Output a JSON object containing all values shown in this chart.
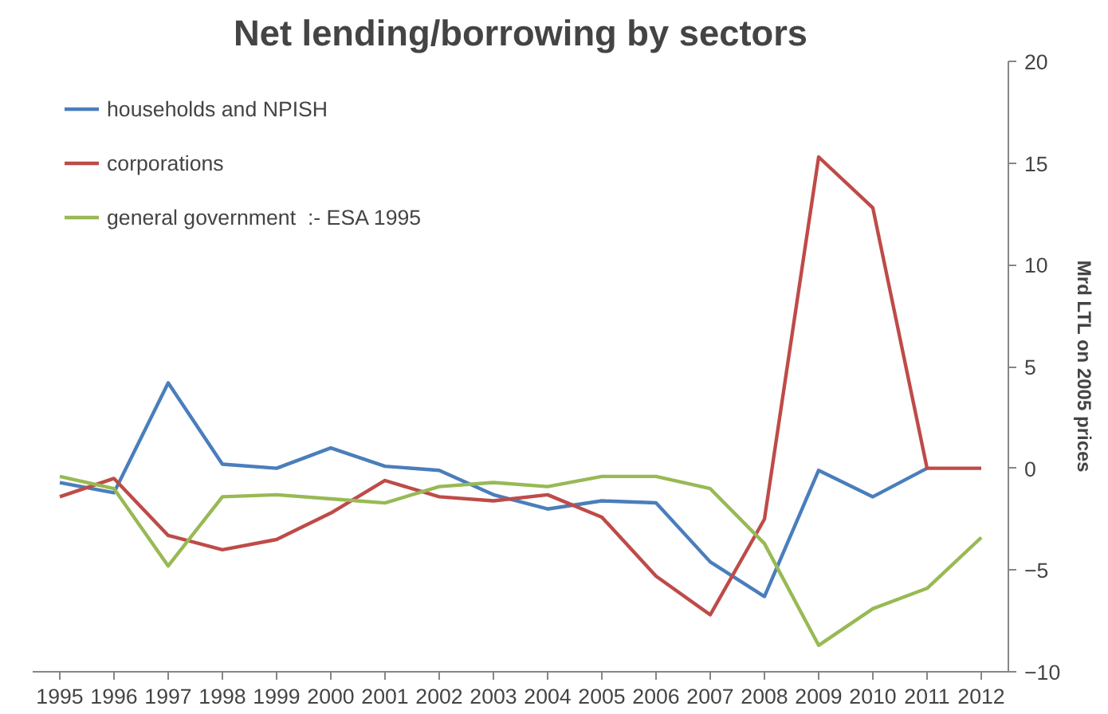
{
  "chart_data": {
    "type": "line",
    "title": "Net lending/borrowing by sectors",
    "ylabel": "Mrd LTL on 2005 prices",
    "categories": [
      "1995",
      "1996",
      "1997",
      "1998",
      "1999",
      "2000",
      "2001",
      "2002",
      "2003",
      "2004",
      "2005",
      "2006",
      "2007",
      "2008",
      "2009",
      "2010",
      "2011",
      "2012"
    ],
    "series": [
      {
        "name": "households and NPISH",
        "color": "#4a7ebb",
        "values": [
          -0.7,
          -1.2,
          4.2,
          0.2,
          0.0,
          1.0,
          0.1,
          -0.1,
          -1.3,
          -2.0,
          -1.6,
          -1.7,
          -4.6,
          -6.3,
          -0.1,
          -1.4,
          0.0,
          null
        ]
      },
      {
        "name": "corporations",
        "color": "#be4b48",
        "values": [
          -1.4,
          -0.5,
          -3.3,
          -4.0,
          -3.5,
          -2.2,
          -0.6,
          -1.4,
          -1.6,
          -1.3,
          -2.4,
          -5.3,
          -7.2,
          -2.5,
          15.3,
          12.8,
          0.0,
          0.0
        ]
      },
      {
        "name": "general government  :- ESA 1995",
        "color": "#98b954",
        "values": [
          -0.4,
          -1.0,
          -4.8,
          -1.4,
          -1.3,
          -1.5,
          -1.7,
          -0.9,
          -0.7,
          -0.9,
          -0.4,
          -0.4,
          -1.0,
          -3.7,
          -8.7,
          -6.9,
          -5.9,
          -3.4
        ]
      }
    ],
    "ylim": [
      -10,
      20
    ],
    "yticks": [
      -10,
      -5,
      0,
      5,
      10,
      15,
      20
    ],
    "grid": false,
    "legend": "top left",
    "marker": "none",
    "line_style": "solid"
  }
}
